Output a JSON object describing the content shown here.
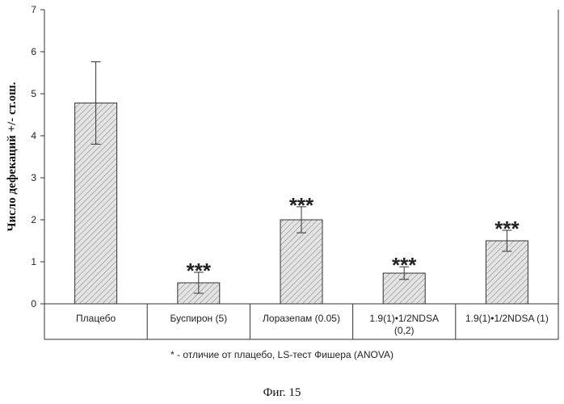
{
  "chart_data": {
    "type": "bar",
    "categories": [
      "Плацебо",
      "Буспирон (5)",
      "Лоразепам (0.05)",
      "1.9(1)•1/2NDSA (0,2)",
      "1.9(1)•1/2NDSA (1)"
    ],
    "category_lines": [
      [
        "Плацебо"
      ],
      [
        "Буспирон (5)"
      ],
      [
        "Лоразепам (0.05)"
      ],
      [
        "1.9(1)•1/2NDSA",
        "(0,2)"
      ],
      [
        "1.9(1)•1/2NDSA (1)"
      ]
    ],
    "values": [
      4.78,
      0.5,
      2.0,
      0.73,
      1.5
    ],
    "errors": [
      0.98,
      0.25,
      0.31,
      0.15,
      0.25
    ],
    "significance": [
      "",
      "***",
      "***",
      "***",
      "***"
    ],
    "ylabel": "Число дефекаций +/- ст.ош.",
    "ylim": [
      0,
      7
    ],
    "yticks": [
      0,
      1,
      2,
      3,
      4,
      5,
      6,
      7
    ],
    "grid": false,
    "bar_pattern": "diagonal-hatch",
    "colors": {
      "bar_fill": "#e4e4e4",
      "hatch": "#8a8a8a",
      "axis": "#333333"
    }
  },
  "footnote": "* - отличие от плацебо, LS-тест Фишера (ANOVA)",
  "caption": "Фиг. 15"
}
